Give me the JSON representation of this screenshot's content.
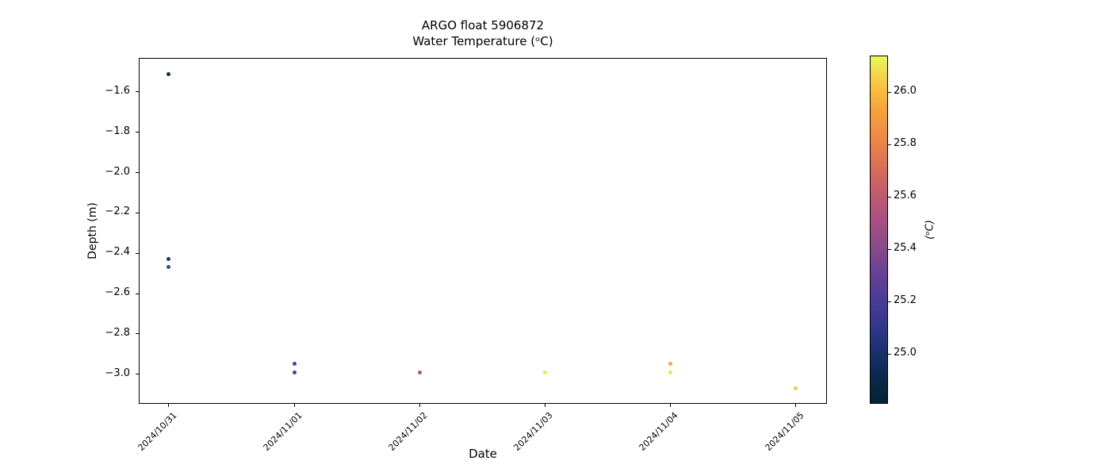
{
  "figure": {
    "title_line1": "ARGO float 5906872",
    "title_line2": "Water Temperature (ᵒC)",
    "xlabel": "Date",
    "ylabel": "Depth (m)"
  },
  "chart_data": {
    "type": "scatter",
    "title": "ARGO float 5906872",
    "subtitle": "Water Temperature (°C)",
    "xlabel": "Date",
    "ylabel": "Depth (m)",
    "grid": false,
    "legend": "colorbar-right",
    "colormap": "cmocean-thermal",
    "xlim_days": [
      -0.24,
      5.247
    ],
    "ylim": [
      -3.147,
      -1.431
    ],
    "x_ticks": [
      {
        "day": 0,
        "label": "2024/10/31"
      },
      {
        "day": 1,
        "label": "2024/11/01"
      },
      {
        "day": 2,
        "label": "2024/11/02"
      },
      {
        "day": 3,
        "label": "2024/11/03"
      },
      {
        "day": 4,
        "label": "2024/11/04"
      },
      {
        "day": 5,
        "label": "2024/11/05"
      }
    ],
    "y_ticks": [
      {
        "value": -1.6,
        "label": "−1.6"
      },
      {
        "value": -1.8,
        "label": "−1.8"
      },
      {
        "value": -2.0,
        "label": "−2.0"
      },
      {
        "value": -2.2,
        "label": "−2.2"
      },
      {
        "value": -2.4,
        "label": "−2.4"
      },
      {
        "value": -2.6,
        "label": "−2.6"
      },
      {
        "value": -2.8,
        "label": "−2.8"
      },
      {
        "value": -3.0,
        "label": "−3.0"
      }
    ],
    "points": [
      {
        "date": "2024/10/31",
        "day": 0,
        "depth_m": -1.51,
        "temp_c": 24.81,
        "color": "#0b2d4d"
      },
      {
        "date": "2024/10/31",
        "day": 0,
        "depth_m": -2.43,
        "temp_c": 24.88,
        "color": "#123a60"
      },
      {
        "date": "2024/10/31",
        "day": 0,
        "depth_m": -2.47,
        "temp_c": 25.02,
        "color": "#2c4a9a"
      },
      {
        "date": "2024/11/01",
        "day": 1,
        "depth_m": -2.95,
        "temp_c": 25.27,
        "color": "#5e3597"
      },
      {
        "date": "2024/11/01",
        "day": 1,
        "depth_m": -2.99,
        "temp_c": 25.26,
        "color": "#5c3496"
      },
      {
        "date": "2024/11/02",
        "day": 2,
        "depth_m": -2.99,
        "temp_c": 25.47,
        "color": "#a8538d"
      },
      {
        "date": "2024/11/03",
        "day": 3,
        "depth_m": -2.99,
        "temp_c": 26.12,
        "color": "#e3ec58"
      },
      {
        "date": "2024/11/04",
        "day": 4,
        "depth_m": -2.95,
        "temp_c": 25.86,
        "color": "#f5a83c"
      },
      {
        "date": "2024/11/04",
        "day": 4,
        "depth_m": -2.99,
        "temp_c": 26.03,
        "color": "#efe04e"
      },
      {
        "date": "2024/11/05",
        "day": 5,
        "depth_m": -3.07,
        "temp_c": 25.92,
        "color": "#f8c647"
      }
    ],
    "colorbar": {
      "label": "(ᵒC)",
      "vmin": 24.81,
      "vmax": 26.14,
      "ticks": [
        {
          "value": 26.0,
          "label": "26.0"
        },
        {
          "value": 25.8,
          "label": "25.8"
        },
        {
          "value": 25.6,
          "label": "25.6"
        },
        {
          "value": 25.4,
          "label": "25.4"
        },
        {
          "value": 25.2,
          "label": "25.2"
        },
        {
          "value": 25.0,
          "label": "25.0"
        }
      ],
      "gradient_bottom_to_top": [
        {
          "pos": 0.0,
          "color": "#042333"
        },
        {
          "pos": 0.08,
          "color": "#0a2a4f"
        },
        {
          "pos": 0.15,
          "color": "#1b3171"
        },
        {
          "pos": 0.22,
          "color": "#33378d"
        },
        {
          "pos": 0.3,
          "color": "#4b3c9a"
        },
        {
          "pos": 0.38,
          "color": "#6b4295"
        },
        {
          "pos": 0.45,
          "color": "#8a4a8a"
        },
        {
          "pos": 0.53,
          "color": "#a85180"
        },
        {
          "pos": 0.6,
          "color": "#c05b6e"
        },
        {
          "pos": 0.68,
          "color": "#d96e57"
        },
        {
          "pos": 0.76,
          "color": "#ec8745"
        },
        {
          "pos": 0.84,
          "color": "#f7a03b"
        },
        {
          "pos": 0.9,
          "color": "#f9bb3e"
        },
        {
          "pos": 0.95,
          "color": "#f3d74a"
        },
        {
          "pos": 1.0,
          "color": "#e9f95a"
        }
      ]
    }
  }
}
